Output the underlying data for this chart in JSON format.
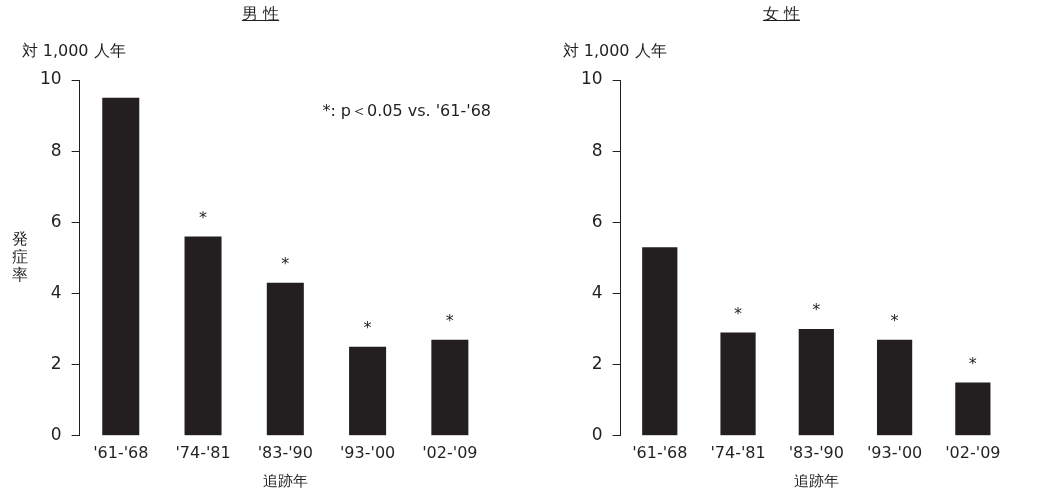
{
  "chart_data": [
    {
      "type": "bar",
      "title": "男 性",
      "ylabel": "発症率",
      "xlabel": "追跡年",
      "categories": [
        "'61-'68",
        "'74-'81",
        "'83-'90",
        "'93-'00",
        "'02-'09"
      ],
      "values": [
        9.5,
        5.6,
        4.3,
        2.5,
        2.7
      ],
      "color": "#231f20",
      "ylim": [
        0,
        10
      ],
      "yticks": [
        0,
        2,
        4,
        6,
        8,
        10
      ],
      "grid": false,
      "legend": false,
      "annotations": [
        "対 1,000 人年",
        "*: p＜0.05 vs. '61-'68",
        {
          "text": "*",
          "x": "'74-'81",
          "y": 5.6
        },
        {
          "text": "*",
          "x": "'83-'90",
          "y": 4.3
        },
        {
          "text": "*",
          "x": "'93-'00",
          "y": 2.5
        },
        {
          "text": "*",
          "x": "'02-'09",
          "y": 2.7
        }
      ]
    },
    {
      "type": "bar",
      "title": "女 性",
      "xlabel": "追跡年",
      "categories": [
        "'61-'68",
        "'74-'81",
        "'83-'90",
        "'93-'00",
        "'02-'09"
      ],
      "values": [
        5.3,
        2.9,
        3.0,
        2.7,
        1.5
      ],
      "color": "#231f20",
      "ylim": [
        0,
        10
      ],
      "yticks": [
        0,
        2,
        4,
        6,
        8,
        10
      ],
      "grid": false,
      "legend": false,
      "annotations": [
        "対 1,000 人年",
        {
          "text": "*",
          "x": "'74-'81",
          "y": 2.9
        },
        {
          "text": "*",
          "x": "'83-'90",
          "y": 3.0
        },
        {
          "text": "*",
          "x": "'93-'00",
          "y": 2.7
        },
        {
          "text": "*",
          "x": "'02-'09",
          "y": 1.5
        }
      ]
    }
  ]
}
